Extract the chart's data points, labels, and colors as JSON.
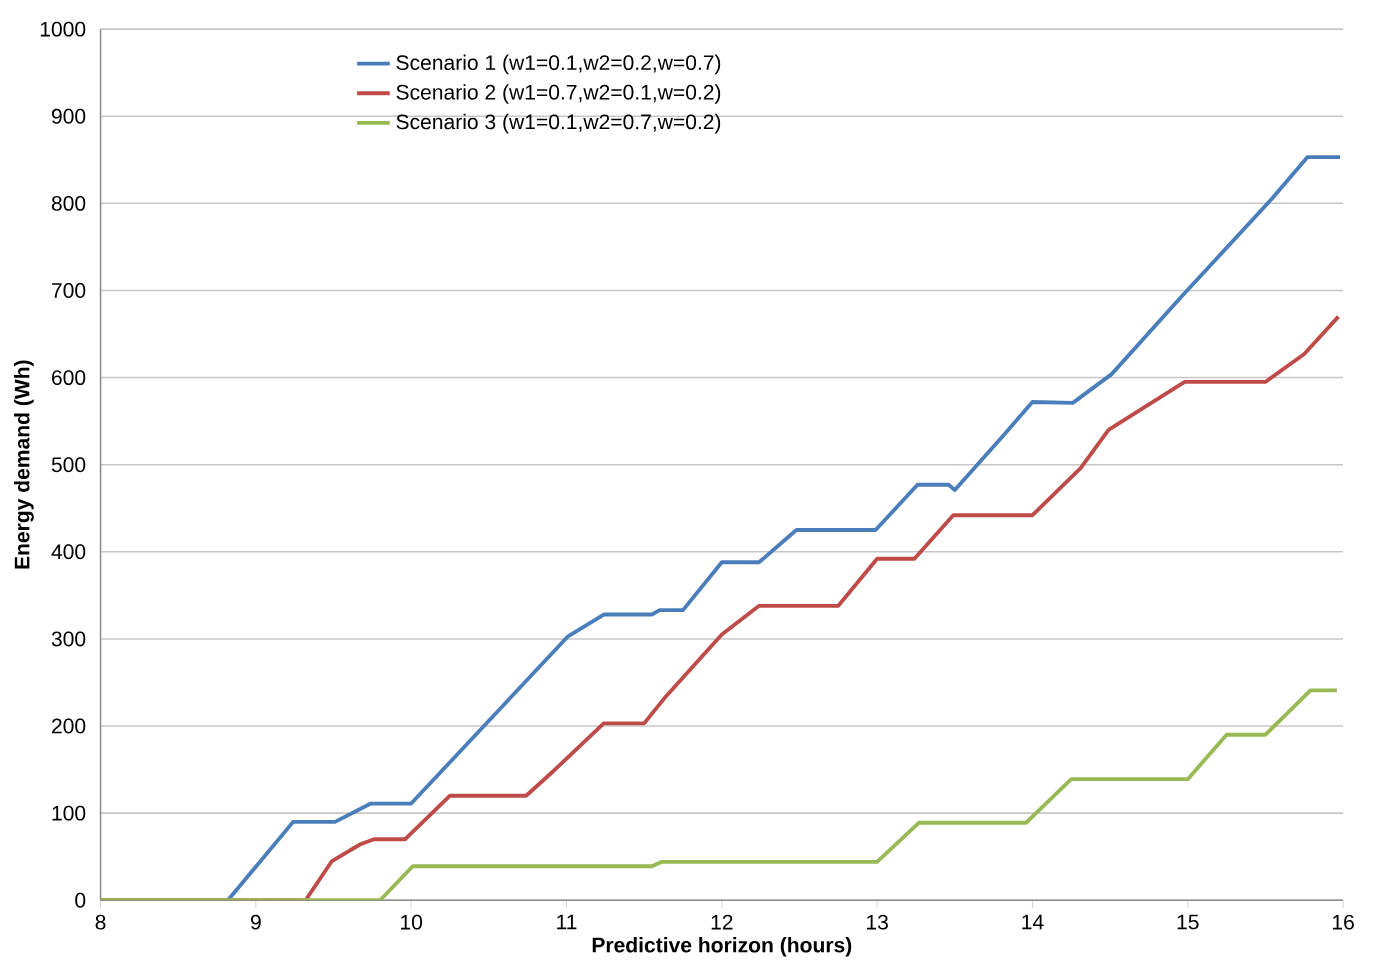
{
  "chart_data": {
    "type": "line",
    "xlabel": "Predictive horizon (hours)",
    "ylabel": "Energy demand (Wh)",
    "xlim": [
      8,
      16
    ],
    "xticks": [
      8,
      9,
      10,
      11,
      12,
      13,
      14,
      15,
      16
    ],
    "ylim": [
      0,
      1000
    ],
    "yticks": [
      0,
      100,
      200,
      300,
      400,
      500,
      600,
      700,
      800,
      900,
      1000
    ],
    "grid": "y",
    "legend": "top left",
    "marker": "none",
    "line_style": "solid",
    "series": [
      {
        "name": "Scenario 1 (w1=0.1,w2=0.2,w=0.7)",
        "color": "#4a7ebb",
        "x": [
          8,
          8.82,
          9.24,
          9.51,
          9.74,
          10.0,
          11.01,
          11.24,
          11.55,
          11.6,
          11.75,
          12.0,
          12.24,
          12.48,
          12.99,
          13.26,
          13.46,
          13.5,
          13.82,
          14.0,
          14.26,
          14.51,
          14.96,
          15.54,
          15.77,
          15.98
        ],
        "values": [
          0,
          0,
          90,
          90,
          111,
          111,
          303,
          328,
          328,
          333,
          333,
          388,
          388,
          425,
          425,
          477,
          477,
          471,
          535,
          572,
          571,
          604,
          693,
          805,
          853,
          853
        ]
      },
      {
        "name": "Scenario 2 (w1=0.7,w2=0.1,w=0.2)",
        "color": "#be4b48",
        "x": [
          8,
          9.32,
          9.49,
          9.67,
          9.76,
          9.96,
          10.25,
          10.74,
          10.92,
          11.24,
          11.5,
          11.64,
          12.0,
          12.24,
          12.75,
          13.0,
          13.24,
          13.49,
          14.0,
          14.31,
          14.49,
          14.98,
          15.5,
          15.75,
          15.97
        ],
        "values": [
          0,
          0,
          45,
          64,
          70,
          70,
          120,
          120,
          149,
          203,
          203,
          234,
          305,
          338,
          338,
          392,
          392,
          442,
          442,
          496,
          540,
          595,
          595,
          627,
          670
        ]
      },
      {
        "name": "Scenario 3 (w1=0.1,w2=0.7,w=0.2)",
        "color": "#98b954",
        "x": [
          8,
          9.8,
          10.01,
          11.55,
          11.61,
          13.0,
          13.27,
          13.96,
          14.25,
          15.0,
          15.25,
          15.5,
          15.79,
          15.96
        ],
        "values": [
          0,
          0,
          39,
          39,
          44,
          44,
          89,
          89,
          139,
          139,
          190,
          190,
          241,
          241
        ]
      }
    ]
  }
}
